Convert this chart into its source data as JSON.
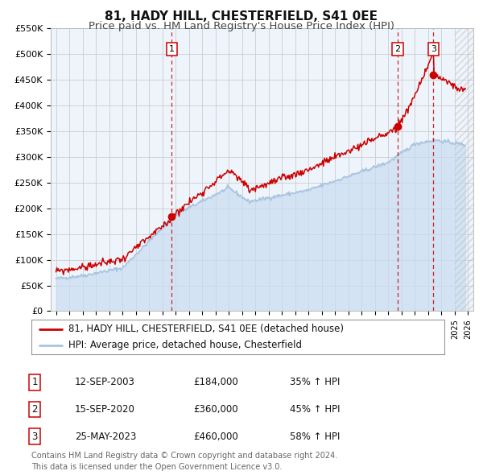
{
  "title": "81, HADY HILL, CHESTERFIELD, S41 0EE",
  "subtitle": "Price paid vs. HM Land Registry's House Price Index (HPI)",
  "ylim": [
    0,
    550000
  ],
  "yticks": [
    0,
    50000,
    100000,
    150000,
    200000,
    250000,
    300000,
    350000,
    400000,
    450000,
    500000,
    550000
  ],
  "ytick_labels": [
    "£0",
    "£50K",
    "£100K",
    "£150K",
    "£200K",
    "£250K",
    "£300K",
    "£350K",
    "£400K",
    "£450K",
    "£500K",
    "£550K"
  ],
  "xlim_start": 1994.6,
  "xlim_end": 2026.4,
  "hpi_color": "#aac4e0",
  "hpi_fill_color": "#c8ddf0",
  "property_color": "#cc0000",
  "grid_color": "#cccccc",
  "background_color": "#ffffff",
  "plot_bg_color": "#eef4fb",
  "sale_line_color": "#cc0000",
  "sales": [
    {
      "label": "1",
      "date_num": 2003.71,
      "price": 184000,
      "pct": "35%",
      "date_str": "12-SEP-2003"
    },
    {
      "label": "2",
      "date_num": 2020.71,
      "price": 360000,
      "pct": "45%",
      "date_str": "15-SEP-2020"
    },
    {
      "label": "3",
      "date_num": 2023.4,
      "price": 460000,
      "pct": "58%",
      "date_str": "25-MAY-2023"
    }
  ],
  "legend_line1": "81, HADY HILL, CHESTERFIELD, S41 0EE (detached house)",
  "legend_line2": "HPI: Average price, detached house, Chesterfield",
  "footnote": "Contains HM Land Registry data © Crown copyright and database right 2024.\nThis data is licensed under the Open Government Licence v3.0.",
  "title_fontsize": 11,
  "subtitle_fontsize": 9.5,
  "tick_fontsize": 8,
  "legend_fontsize": 8.5,
  "footnote_fontsize": 7
}
